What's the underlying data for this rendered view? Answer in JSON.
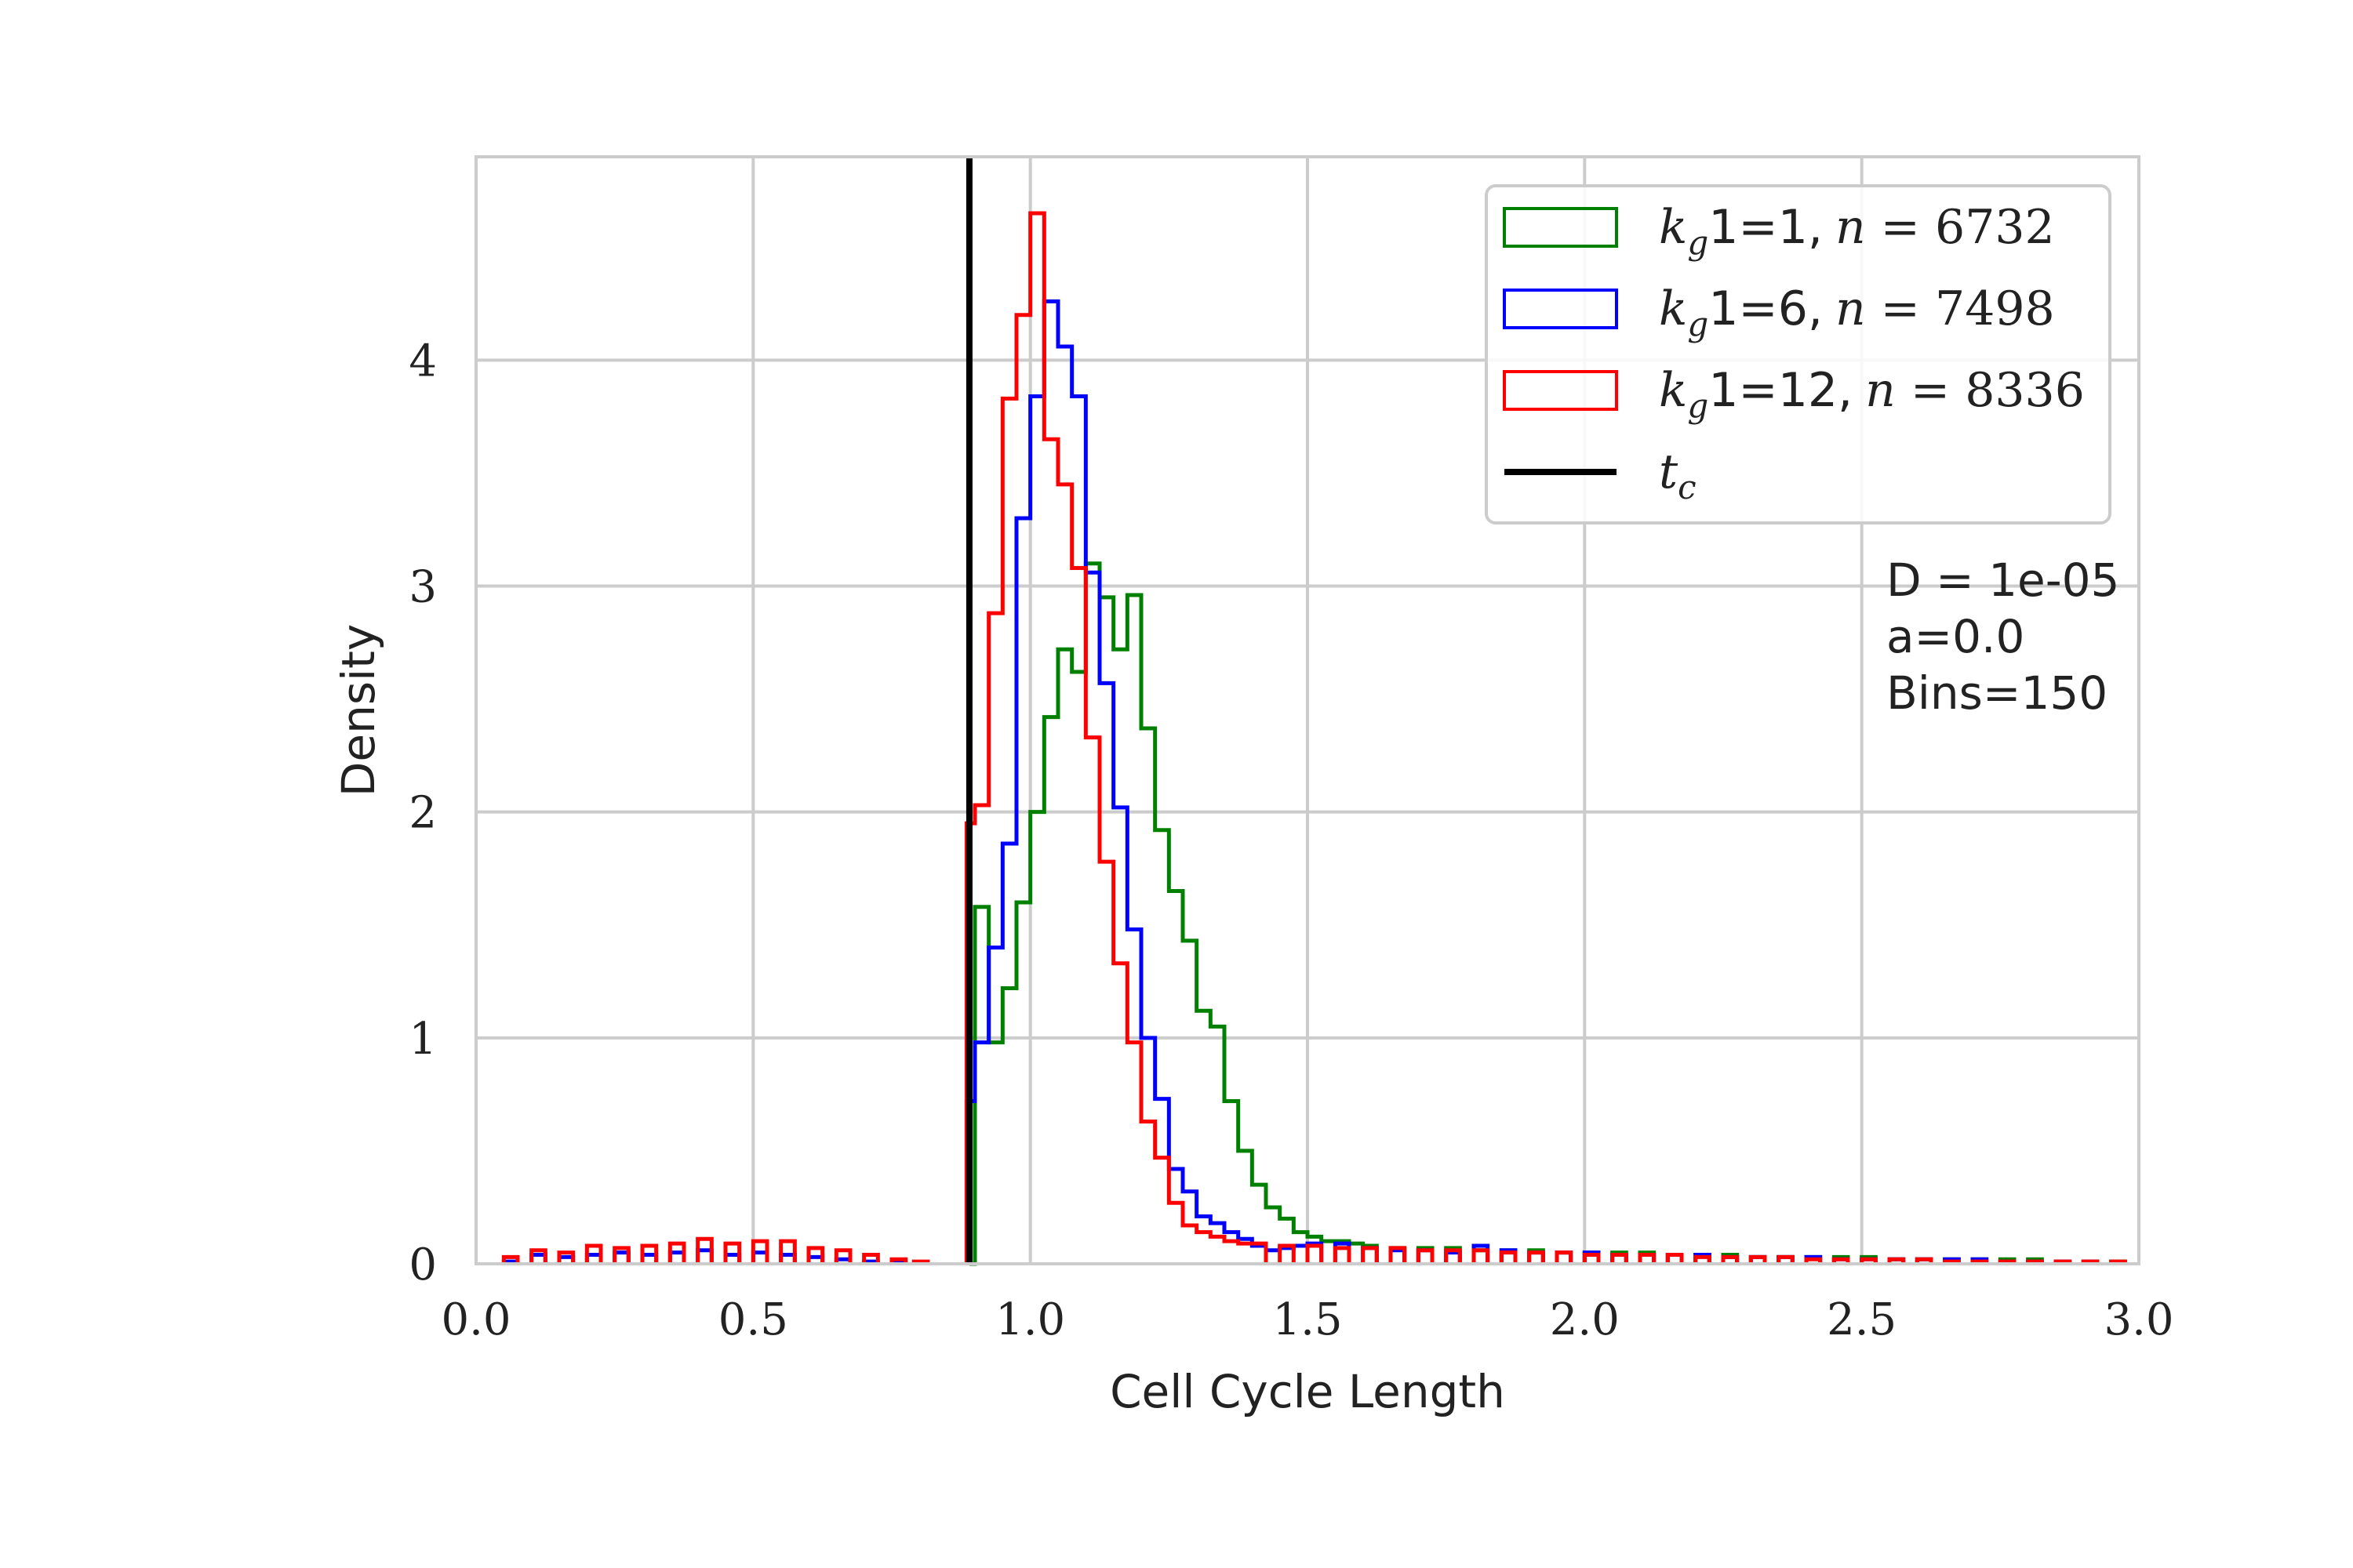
{
  "chart_data": {
    "type": "histogram",
    "xlabel": "Cell Cycle Length",
    "ylabel": "Density",
    "xlim": [
      0.0,
      3.0
    ],
    "ylim": [
      0,
      4.9
    ],
    "xticks": [
      {
        "value": 0.0,
        "label": "0.0"
      },
      {
        "value": 0.5,
        "label": "0.5"
      },
      {
        "value": 1.0,
        "label": "1.0"
      },
      {
        "value": 1.5,
        "label": "1.5"
      },
      {
        "value": 2.0,
        "label": "2.0"
      },
      {
        "value": 2.5,
        "label": "2.5"
      },
      {
        "value": 3.0,
        "label": "3.0"
      }
    ],
    "yticks": [
      {
        "value": 0,
        "label": "0"
      },
      {
        "value": 1,
        "label": "1"
      },
      {
        "value": 2,
        "label": "2"
      },
      {
        "value": 3,
        "label": "3"
      },
      {
        "value": 4,
        "label": "4"
      }
    ],
    "grid": true,
    "legend_position": "top-right",
    "annotation_lines": [
      "D = 1e-05",
      "a=0.0",
      "Bins=150"
    ],
    "tc_line": {
      "label": "t_c",
      "x": 0.89,
      "color": "#000000"
    },
    "bin_width": 0.025,
    "series": [
      {
        "label_k": "1=1,",
        "label_n": "6732",
        "color": "#008000",
        "points": [
          [
            0.89,
            0.0
          ],
          [
            0.9,
            1.58
          ],
          [
            0.925,
            0.98
          ],
          [
            0.95,
            1.22
          ],
          [
            0.975,
            1.6
          ],
          [
            1.0,
            2.0
          ],
          [
            1.025,
            2.42
          ],
          [
            1.05,
            2.72
          ],
          [
            1.075,
            2.62
          ],
          [
            1.1,
            3.1
          ],
          [
            1.125,
            2.95
          ],
          [
            1.15,
            2.72
          ],
          [
            1.175,
            2.96
          ],
          [
            1.2,
            2.37
          ],
          [
            1.225,
            1.92
          ],
          [
            1.25,
            1.65
          ],
          [
            1.275,
            1.43
          ],
          [
            1.3,
            1.12
          ],
          [
            1.325,
            1.05
          ],
          [
            1.35,
            0.72
          ],
          [
            1.375,
            0.5
          ],
          [
            1.4,
            0.35
          ],
          [
            1.425,
            0.25
          ],
          [
            1.45,
            0.2
          ],
          [
            1.475,
            0.14
          ],
          [
            1.5,
            0.12
          ],
          [
            1.525,
            0.1
          ],
          [
            1.55,
            0.1
          ],
          [
            1.575,
            0.09
          ],
          [
            1.6,
            0.08
          ],
          [
            1.65,
            0.07
          ],
          [
            1.7,
            0.07
          ],
          [
            1.75,
            0.07
          ],
          [
            1.8,
            0.06
          ],
          [
            1.85,
            0.06
          ],
          [
            1.9,
            0.06
          ],
          [
            1.95,
            0.05
          ],
          [
            2.0,
            0.05
          ],
          [
            2.05,
            0.05
          ],
          [
            2.1,
            0.05
          ],
          [
            2.15,
            0.04
          ],
          [
            2.2,
            0.04
          ],
          [
            2.25,
            0.04
          ],
          [
            2.3,
            0.03
          ],
          [
            2.35,
            0.03
          ],
          [
            2.4,
            0.03
          ],
          [
            2.45,
            0.03
          ],
          [
            2.5,
            0.03
          ],
          [
            2.55,
            0.02
          ],
          [
            2.6,
            0.02
          ],
          [
            2.65,
            0.02
          ],
          [
            2.7,
            0.02
          ],
          [
            2.75,
            0.02
          ],
          [
            2.8,
            0.02
          ],
          [
            2.85,
            0.01
          ],
          [
            2.9,
            0.01
          ],
          [
            2.95,
            0.01
          ]
        ]
      },
      {
        "label_k": "1=6,",
        "label_n": "7498",
        "color": "#0000ff",
        "points": [
          [
            0.05,
            0.01
          ],
          [
            0.1,
            0.04
          ],
          [
            0.15,
            0.03
          ],
          [
            0.2,
            0.04
          ],
          [
            0.25,
            0.05
          ],
          [
            0.3,
            0.04
          ],
          [
            0.35,
            0.05
          ],
          [
            0.4,
            0.06
          ],
          [
            0.45,
            0.04
          ],
          [
            0.5,
            0.05
          ],
          [
            0.55,
            0.04
          ],
          [
            0.6,
            0.03
          ],
          [
            0.65,
            0.02
          ],
          [
            0.7,
            0.01
          ],
          [
            0.75,
            0.01
          ],
          [
            0.885,
            0.72
          ],
          [
            0.9,
            0.98
          ],
          [
            0.925,
            1.4
          ],
          [
            0.95,
            1.86
          ],
          [
            0.975,
            3.3
          ],
          [
            1.0,
            3.84
          ],
          [
            1.025,
            4.26
          ],
          [
            1.05,
            4.06
          ],
          [
            1.075,
            3.84
          ],
          [
            1.1,
            3.06
          ],
          [
            1.125,
            2.57
          ],
          [
            1.15,
            2.02
          ],
          [
            1.175,
            1.48
          ],
          [
            1.2,
            1.0
          ],
          [
            1.225,
            0.73
          ],
          [
            1.25,
            0.42
          ],
          [
            1.275,
            0.32
          ],
          [
            1.3,
            0.21
          ],
          [
            1.325,
            0.18
          ],
          [
            1.35,
            0.14
          ],
          [
            1.375,
            0.11
          ],
          [
            1.4,
            0.08
          ],
          [
            1.425,
            0.06
          ],
          [
            1.45,
            0.07
          ],
          [
            1.475,
            0.08
          ],
          [
            1.5,
            0.09
          ],
          [
            1.55,
            0.09
          ],
          [
            1.6,
            0.07
          ],
          [
            1.65,
            0.06
          ],
          [
            1.7,
            0.06
          ],
          [
            1.75,
            0.05
          ],
          [
            1.8,
            0.08
          ],
          [
            1.85,
            0.06
          ],
          [
            1.9,
            0.05
          ],
          [
            1.95,
            0.05
          ],
          [
            2.0,
            0.05
          ],
          [
            2.05,
            0.04
          ],
          [
            2.1,
            0.04
          ],
          [
            2.15,
            0.04
          ],
          [
            2.2,
            0.04
          ],
          [
            2.25,
            0.03
          ],
          [
            2.3,
            0.03
          ],
          [
            2.35,
            0.03
          ],
          [
            2.4,
            0.03
          ],
          [
            2.45,
            0.02
          ],
          [
            2.5,
            0.02
          ],
          [
            2.55,
            0.02
          ],
          [
            2.6,
            0.02
          ],
          [
            2.65,
            0.02
          ],
          [
            2.7,
            0.02
          ],
          [
            2.75,
            0.01
          ],
          [
            2.8,
            0.01
          ],
          [
            2.85,
            0.01
          ],
          [
            2.9,
            0.01
          ]
        ]
      },
      {
        "label_k": "1=12,",
        "label_n": "8336",
        "color": "#ff0000",
        "points": [
          [
            0.05,
            0.03
          ],
          [
            0.1,
            0.06
          ],
          [
            0.15,
            0.05
          ],
          [
            0.2,
            0.08
          ],
          [
            0.25,
            0.07
          ],
          [
            0.3,
            0.08
          ],
          [
            0.35,
            0.09
          ],
          [
            0.4,
            0.11
          ],
          [
            0.45,
            0.09
          ],
          [
            0.5,
            0.1
          ],
          [
            0.55,
            0.1
          ],
          [
            0.6,
            0.07
          ],
          [
            0.65,
            0.06
          ],
          [
            0.7,
            0.04
          ],
          [
            0.75,
            0.02
          ],
          [
            0.79,
            0.01
          ],
          [
            0.885,
            1.95
          ],
          [
            0.9,
            2.03
          ],
          [
            0.925,
            2.88
          ],
          [
            0.95,
            3.83
          ],
          [
            0.975,
            4.2
          ],
          [
            1.0,
            4.65
          ],
          [
            1.025,
            3.65
          ],
          [
            1.05,
            3.45
          ],
          [
            1.075,
            3.08
          ],
          [
            1.1,
            2.33
          ],
          [
            1.125,
            1.78
          ],
          [
            1.15,
            1.33
          ],
          [
            1.175,
            0.98
          ],
          [
            1.2,
            0.63
          ],
          [
            1.225,
            0.47
          ],
          [
            1.25,
            0.27
          ],
          [
            1.275,
            0.17
          ],
          [
            1.3,
            0.14
          ],
          [
            1.325,
            0.12
          ],
          [
            1.35,
            0.1
          ],
          [
            1.375,
            0.09
          ],
          [
            1.4,
            0.09
          ],
          [
            1.45,
            0.08
          ],
          [
            1.5,
            0.08
          ],
          [
            1.55,
            0.07
          ],
          [
            1.6,
            0.07
          ],
          [
            1.65,
            0.07
          ],
          [
            1.7,
            0.06
          ],
          [
            1.75,
            0.06
          ],
          [
            1.8,
            0.06
          ],
          [
            1.85,
            0.05
          ],
          [
            1.9,
            0.05
          ],
          [
            1.95,
            0.05
          ],
          [
            2.0,
            0.04
          ],
          [
            2.05,
            0.04
          ],
          [
            2.1,
            0.04
          ],
          [
            2.15,
            0.04
          ],
          [
            2.2,
            0.03
          ],
          [
            2.25,
            0.03
          ],
          [
            2.3,
            0.03
          ],
          [
            2.35,
            0.03
          ],
          [
            2.4,
            0.02
          ],
          [
            2.45,
            0.02
          ],
          [
            2.5,
            0.02
          ],
          [
            2.55,
            0.02
          ],
          [
            2.6,
            0.02
          ],
          [
            2.65,
            0.01
          ],
          [
            2.7,
            0.01
          ],
          [
            2.75,
            0.01
          ],
          [
            2.8,
            0.01
          ],
          [
            2.85,
            0.01
          ],
          [
            2.9,
            0.01
          ],
          [
            2.95,
            0.01
          ]
        ]
      }
    ]
  }
}
